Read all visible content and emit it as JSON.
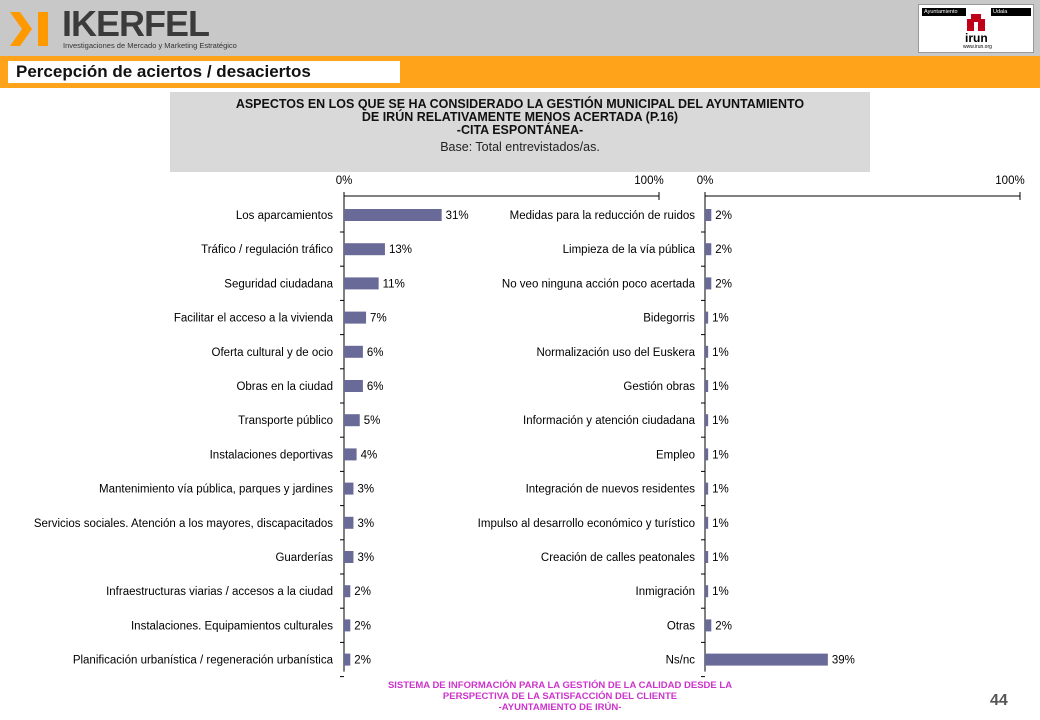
{
  "brand": {
    "name": "IKERFEL",
    "tagline": "Investigaciones de Mercado y Marketing Estratégico"
  },
  "client_logo": {
    "label_left": "Ayuntamiento",
    "label_right": "Udala",
    "name": "irun",
    "url_text": "www.irun.org"
  },
  "section_title": "Percepción de aciertos / desaciertos",
  "header": {
    "line1": "ASPECTOS EN LOS QUE SE HA CONSIDERADO LA GESTIÓN MUNICIPAL DEL AYUNTAMIENTO",
    "line2": "DE IRÚN RELATIVAMENTE MENOS ACERTADA (P.16)",
    "line3": "-CITA ESPONTÁNEA-",
    "base": "Base: Total entrevistados/as."
  },
  "colors": {
    "bar": "#6a6a99",
    "accent": "#ffa31a",
    "footer": "#cc33cc"
  },
  "chart_data": [
    {
      "type": "bar",
      "orientation": "horizontal",
      "xlim": [
        0,
        100
      ],
      "tick_labels": [
        "0%",
        "100%"
      ],
      "categories": [
        "Los aparcamientos",
        "Tráfico / regulación tráfico",
        "Seguridad ciudadana",
        "Facilitar el acceso a la vivienda",
        "Oferta cultural y de ocio",
        "Obras en la ciudad",
        "Transporte público",
        "Instalaciones deportivas",
        "Mantenimiento vía pública, parques y jardines",
        "Servicios sociales. Atención a los mayores, discapacitados",
        "Guarderías",
        "Infraestructuras viarias / accesos a la ciudad",
        "Instalaciones.  Equipamientos culturales",
        "Planificación urbanística / regeneración urbanística"
      ],
      "values": [
        31,
        13,
        11,
        7,
        6,
        6,
        5,
        4,
        3,
        3,
        3,
        2,
        2,
        2
      ],
      "labels": [
        "31%",
        "13%",
        "11%",
        "7%",
        "6%",
        "6%",
        "5%",
        "4%",
        "3%",
        "3%",
        "3%",
        "2%",
        "2%",
        "2%"
      ]
    },
    {
      "type": "bar",
      "orientation": "horizontal",
      "xlim": [
        0,
        100
      ],
      "tick_labels": [
        "0%",
        "100%"
      ],
      "categories": [
        "Medidas para la reducción de ruidos",
        "Limpieza de la vía pública",
        "No veo ninguna acción poco acertada",
        "Bidegorris",
        "Normalización uso del Euskera",
        "Gestión obras",
        "Información y atención ciudadana",
        "Empleo",
        "Integración de nuevos residentes",
        "Impulso al desarrollo económico y turístico",
        "Creación de calles peatonales",
        "Inmigración",
        "Otras",
        "Ns/nc"
      ],
      "values": [
        2,
        2,
        2,
        1,
        1,
        1,
        1,
        1,
        1,
        1,
        1,
        1,
        2,
        39
      ],
      "labels": [
        "2%",
        "2%",
        "2%",
        "1%",
        "1%",
        "1%",
        "1%",
        "1%",
        "1%",
        "1%",
        "1%",
        "1%",
        "2%",
        "39%"
      ]
    }
  ],
  "footer": {
    "line1": "SISTEMA DE INFORMACIÓN PARA LA GESTIÓN DE LA CALIDAD DESDE LA",
    "line2": "PERSPECTIVA DE LA SATISFACCIÓN DEL CLIENTE",
    "line3": "-AYUNTAMIENTO DE IRÚN-"
  },
  "page_number": "44"
}
